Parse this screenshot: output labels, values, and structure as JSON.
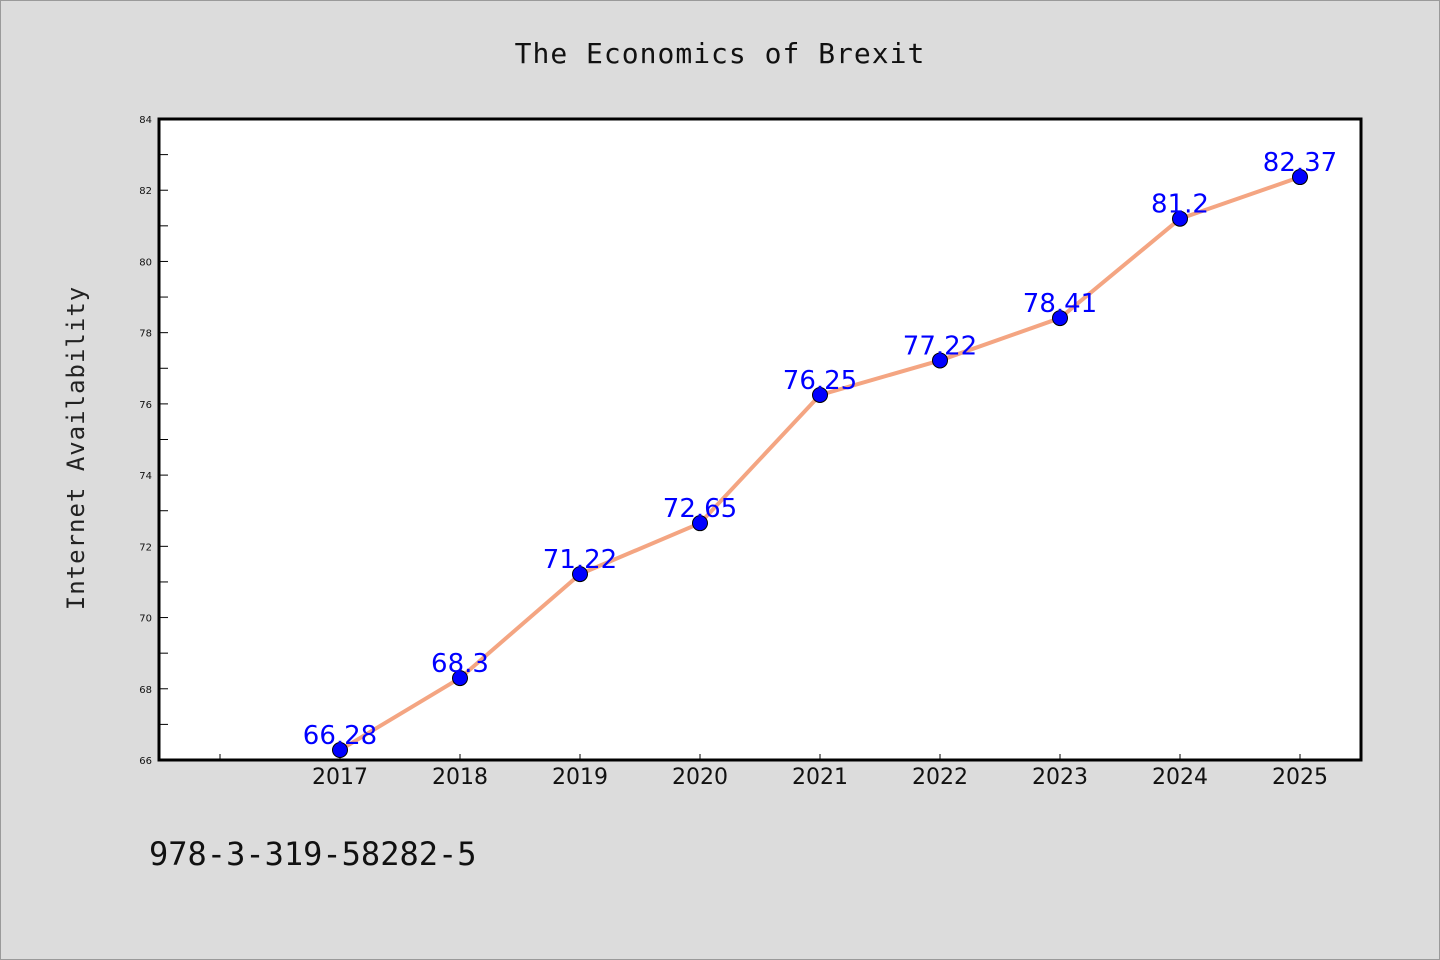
{
  "chart_data": {
    "type": "line",
    "title": "The Economics of Brexit",
    "xlabel": "",
    "ylabel": "Internet Availability",
    "categories": [
      "2017",
      "2018",
      "2019",
      "2020",
      "2021",
      "2022",
      "2023",
      "2024",
      "2025"
    ],
    "series": [
      {
        "values": [
          66.28,
          68.3,
          71.22,
          72.65,
          76.25,
          77.22,
          78.41,
          81.2,
          82.37
        ],
        "data_labels": [
          "66.28",
          "68.3",
          "71.22",
          "72.65",
          "76.25",
          "77.22",
          "78.41",
          "81.2",
          "82.37"
        ]
      }
    ],
    "ylim": [
      66,
      84
    ],
    "yticks": [
      "66",
      "68",
      "70",
      "72",
      "74",
      "76",
      "78",
      "80",
      "82",
      "84"
    ],
    "grid": false,
    "colors": {
      "line": "#f4a582",
      "marker": "#0000ff",
      "label": "#0000ff",
      "background": "#dcdcdc",
      "plot_area": "#ffffff"
    }
  },
  "footnote": "978-3-319-58282-5"
}
